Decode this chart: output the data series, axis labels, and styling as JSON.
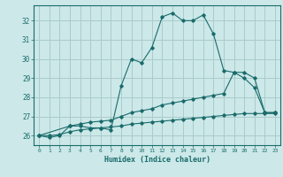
{
  "title": "",
  "xlabel": "Humidex (Indice chaleur)",
  "ylabel": "",
  "bg_color": "#cce8e8",
  "grid_color": "#aacccc",
  "line_color": "#1a6b6b",
  "xlim": [
    -0.5,
    23.5
  ],
  "ylim": [
    25.5,
    32.8
  ],
  "yticks": [
    26,
    27,
    28,
    29,
    30,
    31,
    32
  ],
  "xticks": [
    0,
    1,
    2,
    3,
    4,
    5,
    6,
    7,
    8,
    9,
    10,
    11,
    12,
    13,
    14,
    15,
    16,
    17,
    18,
    19,
    20,
    21,
    22,
    23
  ],
  "line1_x": [
    0,
    1,
    2,
    3,
    4,
    5,
    6,
    7,
    8,
    9,
    10,
    11,
    12,
    13,
    14,
    15,
    16,
    17,
    18,
    19,
    20,
    21,
    22,
    23
  ],
  "line1_y": [
    26.0,
    25.9,
    26.0,
    26.5,
    26.5,
    26.4,
    26.4,
    26.3,
    28.6,
    30.0,
    29.8,
    30.6,
    32.2,
    32.4,
    32.0,
    32.0,
    32.3,
    31.3,
    29.4,
    29.3,
    29.0,
    28.5,
    27.2,
    27.2
  ],
  "line2_x": [
    0,
    3,
    4,
    5,
    6,
    7,
    8,
    9,
    10,
    11,
    12,
    13,
    14,
    15,
    16,
    17,
    18,
    19,
    20,
    21,
    22,
    23
  ],
  "line2_y": [
    26.0,
    26.5,
    26.6,
    26.7,
    26.75,
    26.8,
    27.0,
    27.2,
    27.3,
    27.4,
    27.6,
    27.7,
    27.8,
    27.9,
    28.0,
    28.1,
    28.2,
    29.3,
    29.3,
    29.0,
    27.2,
    27.2
  ],
  "line3_x": [
    0,
    1,
    2,
    3,
    4,
    5,
    6,
    7,
    8,
    9,
    10,
    11,
    12,
    13,
    14,
    15,
    16,
    17,
    18,
    19,
    20,
    21,
    22,
    23
  ],
  "line3_y": [
    26.0,
    26.0,
    26.05,
    26.2,
    26.3,
    26.35,
    26.4,
    26.45,
    26.5,
    26.6,
    26.65,
    26.7,
    26.75,
    26.8,
    26.85,
    26.9,
    26.95,
    27.0,
    27.05,
    27.1,
    27.15,
    27.15,
    27.15,
    27.15
  ]
}
